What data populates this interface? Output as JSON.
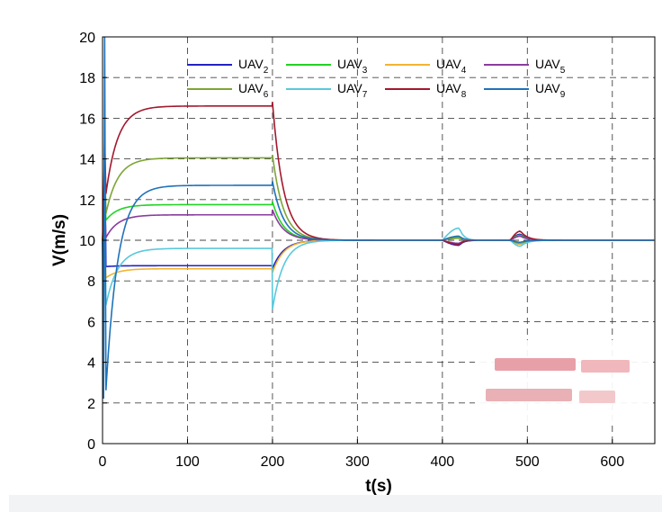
{
  "chart_data": {
    "type": "line",
    "title": "",
    "xlabel": "t(s)",
    "ylabel": "V(m/s)",
    "xlim": [
      0,
      650
    ],
    "ylim": [
      0,
      20
    ],
    "xticks": [
      0,
      100,
      200,
      300,
      400,
      500,
      600
    ],
    "yticks": [
      0,
      2,
      4,
      6,
      8,
      10,
      12,
      14,
      16,
      18,
      20
    ],
    "grid": true,
    "grid_style": "dashed",
    "legend_placement": "top-center",
    "legend_columns": 4,
    "series": [
      {
        "name": "UAV",
        "sub": "2",
        "color": "#2222c8",
        "plateau": 8.75,
        "peak": 15.2,
        "trough": 8.7,
        "dip200": 8.6,
        "d400": -0.25,
        "d480": 0.3
      },
      {
        "name": "UAV",
        "sub": "3",
        "color": "#22d322",
        "plateau": 11.75,
        "peak": 12.5,
        "trough": 10.9,
        "dip200": 11.9,
        "d400": 0.15,
        "d480": 0.25
      },
      {
        "name": "UAV",
        "sub": "4",
        "color": "#f2b430",
        "plateau": 8.6,
        "peak": 9.8,
        "trough": 8.1,
        "dip200": 8.4,
        "d400": 0.2,
        "d480": -0.2
      },
      {
        "name": "UAV",
        "sub": "5",
        "color": "#8a3c9e",
        "plateau": 11.25,
        "peak": 12.0,
        "trough": 10.0,
        "dip200": 11.5,
        "d400": -0.15,
        "d480": 0.2
      },
      {
        "name": "UAV",
        "sub": "6",
        "color": "#7ea537",
        "plateau": 14.05,
        "peak": 14.3,
        "trough": 11.0,
        "dip200": 14.2,
        "d400": 0.1,
        "d480": -0.15
      },
      {
        "name": "UAV",
        "sub": "7",
        "color": "#5ac8dc",
        "plateau": 9.6,
        "peak": 10.2,
        "trough": 6.5,
        "dip200": 6.6,
        "d400": 0.6,
        "d480": -0.3
      },
      {
        "name": "UAV",
        "sub": "8",
        "color": "#a3182e",
        "plateau": 16.6,
        "peak": 15.0,
        "trough": 11.8,
        "dip200": 16.8,
        "d400": -0.2,
        "d480": 0.45
      },
      {
        "name": "UAV",
        "sub": "9",
        "color": "#1f72b8",
        "plateau": 12.7,
        "peak": 20.0,
        "trough": 1.5,
        "dip200": 12.9,
        "d400": 0.2,
        "d480": -0.1
      }
    ],
    "steady_state_value": 10
  }
}
